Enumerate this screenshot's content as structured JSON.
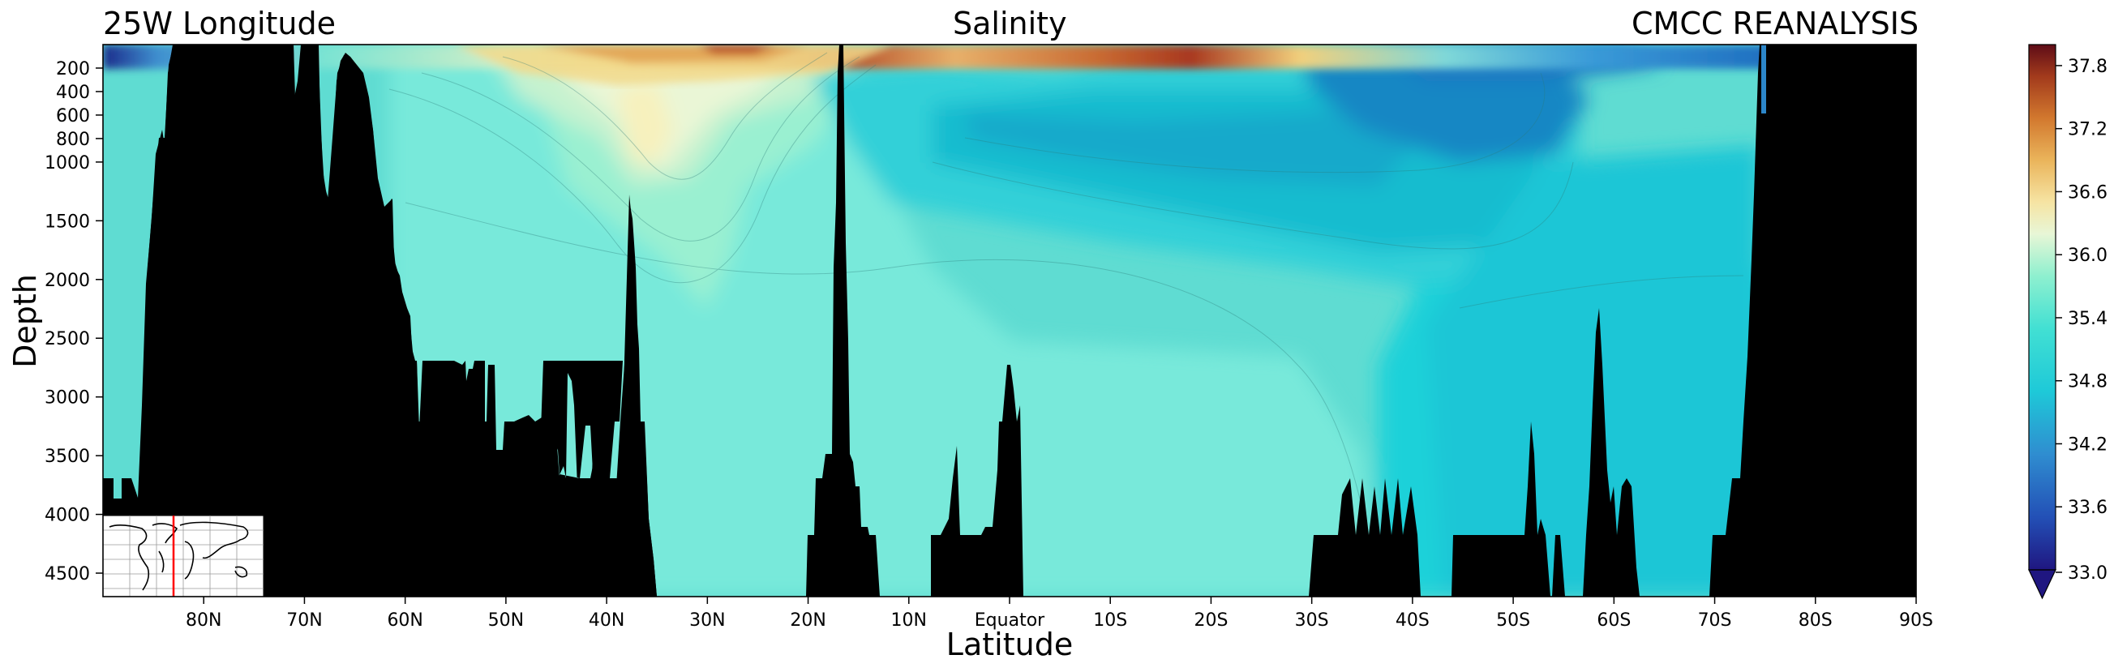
{
  "chart_data": {
    "type": "heatmap",
    "title": "Salinity",
    "title_left": "25W Longitude",
    "title_right": "CMCC REANALYSIS",
    "xlabel": "Latitude",
    "ylabel": "Depth",
    "x_ticks": [
      "80N",
      "70N",
      "60N",
      "50N",
      "40N",
      "30N",
      "20N",
      "10N",
      "Equator",
      "10S",
      "20S",
      "30S",
      "40S",
      "50S",
      "60S",
      "70S",
      "80S",
      "90S"
    ],
    "x_tick_values": [
      80,
      70,
      60,
      50,
      40,
      30,
      20,
      10,
      0,
      -10,
      -20,
      -30,
      -40,
      -50,
      -60,
      -70,
      -80,
      -90
    ],
    "xlim": [
      90,
      -90
    ],
    "y_ticks": [
      "200",
      "400",
      "600",
      "800",
      "1000",
      "1500",
      "2000",
      "2500",
      "3000",
      "3500",
      "4000",
      "4500"
    ],
    "y_tick_values": [
      200,
      400,
      600,
      800,
      1000,
      1500,
      2000,
      2500,
      3000,
      3500,
      4000,
      4500
    ],
    "ylim": [
      4700,
      0
    ],
    "colorbar": {
      "ticks": [
        "37.8",
        "37.2",
        "36.6",
        "36.0",
        "35.4",
        "34.8",
        "34.2",
        "33.6",
        "33.0"
      ],
      "tick_values": [
        37.8,
        37.2,
        36.6,
        36.0,
        35.4,
        34.8,
        34.2,
        33.6,
        33.0
      ],
      "range": [
        33.0,
        38.0
      ],
      "extend": "min"
    },
    "inset_map": "world map with red meridian at 25W",
    "colors": {
      "land": "#000000",
      "section_line": "#ff0000"
    }
  }
}
